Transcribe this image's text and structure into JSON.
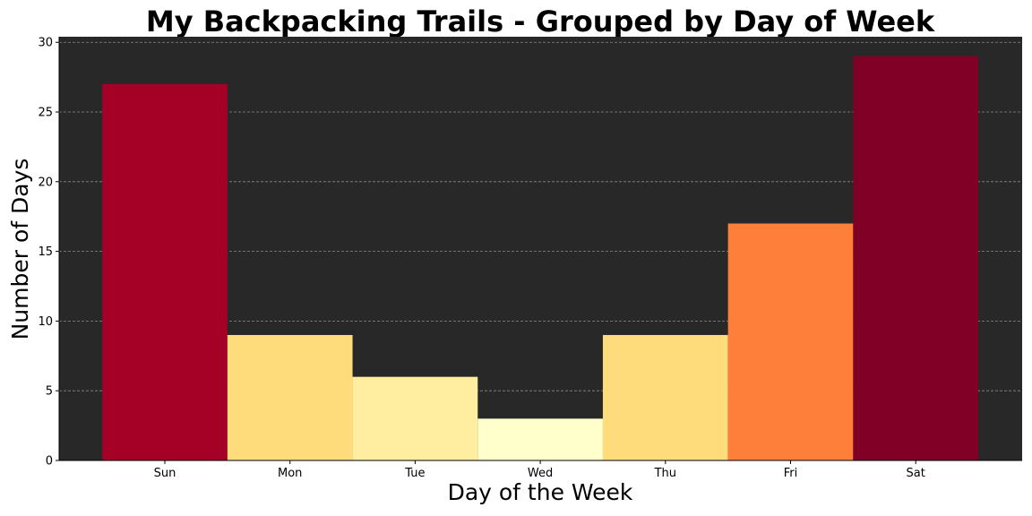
{
  "chart_data": {
    "type": "bar",
    "title": "My Backpacking Trails - Grouped by Day of Week",
    "xlabel": "Day of the Week",
    "ylabel": "Number of Days",
    "categories": [
      "Sun",
      "Mon",
      "Tue",
      "Wed",
      "Thu",
      "Fri",
      "Sat"
    ],
    "values": [
      27,
      9,
      6,
      3,
      9,
      17,
      29
    ],
    "bar_colors": [
      "#a50026",
      "#fedb7b",
      "#ffeda0",
      "#ffffcc",
      "#fedb7b",
      "#fd7f39",
      "#800026"
    ],
    "ylim": [
      0,
      30.4
    ],
    "yticks": [
      "0",
      "5",
      "10",
      "15",
      "20",
      "25",
      "30"
    ],
    "ytick_values": [
      0,
      5,
      10,
      15,
      20,
      25,
      30
    ],
    "grid": "horizontal-dashed",
    "plot_background": "#282828",
    "grid_color": "#8a8a8a"
  }
}
